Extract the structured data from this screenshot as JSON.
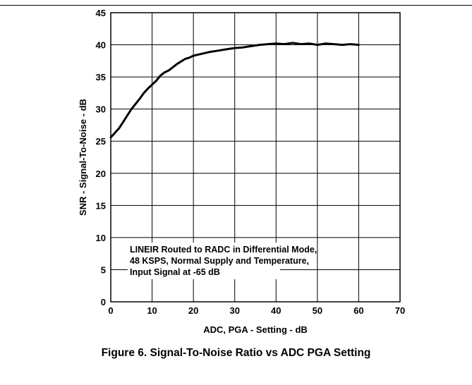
{
  "chart_data": {
    "type": "line",
    "title": "Figure 6. Signal-To-Noise Ratio vs ADC PGA Setting",
    "xlabel": "ADC, PGA - Setting - dB",
    "ylabel": "SNR - Signal-To-Noise - dB",
    "xlim": [
      0,
      70
    ],
    "ylim": [
      0,
      45
    ],
    "x_ticks": [
      "0",
      "10",
      "20",
      "30",
      "40",
      "50",
      "60",
      "70"
    ],
    "y_ticks": [
      "0",
      "5",
      "10",
      "15",
      "20",
      "25",
      "30",
      "35",
      "40",
      "45"
    ],
    "grid": true,
    "annotation": [
      "LINEIR Routed to RADC in Differential Mode,",
      "48 KSPS, Normal Supply and Temperature,",
      "Input Signal at -65 dB"
    ],
    "series": [
      {
        "color": "#000000",
        "x": [
          0,
          1,
          2,
          3,
          4,
          5,
          6,
          7,
          8,
          9,
          10,
          11,
          12,
          13,
          14,
          15,
          16,
          17,
          18,
          19,
          20,
          22,
          24,
          26,
          28,
          30,
          32,
          34,
          36,
          38,
          40,
          42,
          44,
          46,
          48,
          50,
          52,
          54,
          56,
          58,
          60
        ],
        "y": [
          25.6,
          26.3,
          27.0,
          28.0,
          29.0,
          30.0,
          30.8,
          31.6,
          32.5,
          33.2,
          33.8,
          34.4,
          35.2,
          35.7,
          36.0,
          36.5,
          37.0,
          37.4,
          37.8,
          38.0,
          38.3,
          38.6,
          38.9,
          39.1,
          39.3,
          39.5,
          39.6,
          39.8,
          40.0,
          40.1,
          40.2,
          40.1,
          40.3,
          40.1,
          40.2,
          40.0,
          40.2,
          40.1,
          40.0,
          40.1,
          40.0
        ]
      }
    ]
  }
}
